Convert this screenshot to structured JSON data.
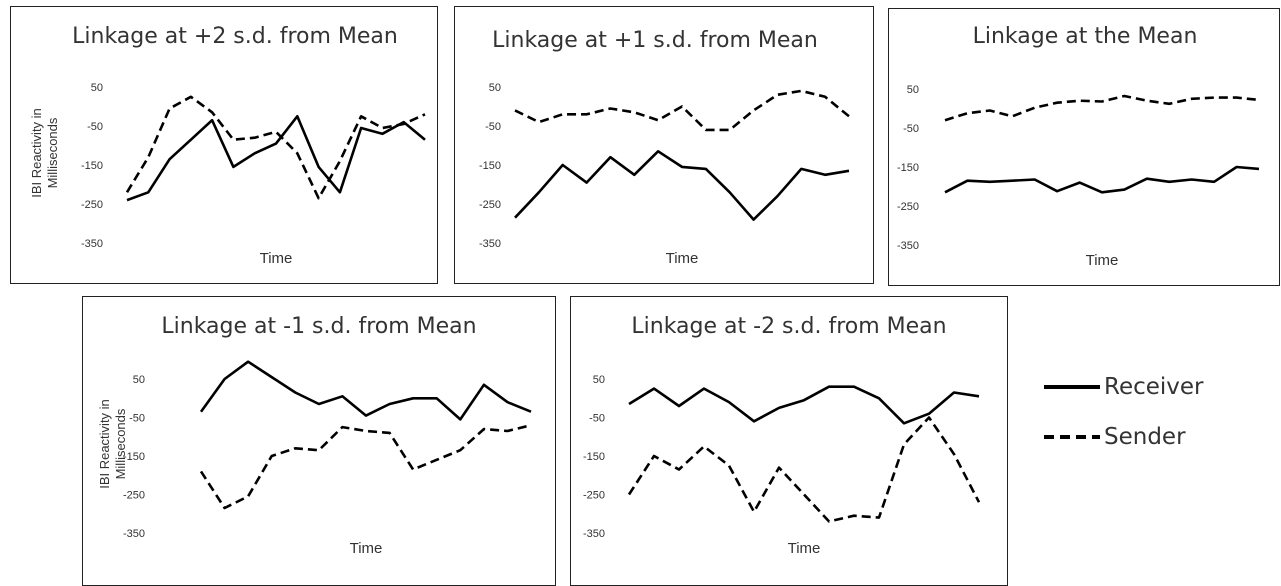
{
  "chart_data": [
    {
      "type": "line",
      "title": "Linkage at +2 s.d. from Mean",
      "xlabel": "Time",
      "ylabel": "IBI Reactivity in Milliseconds",
      "ylim": [
        -350,
        100
      ],
      "yticks": [
        50,
        -50,
        -150,
        -250,
        -350
      ],
      "series": [
        {
          "name": "Receiver",
          "style": "solid",
          "values": [
            -240,
            -220,
            -135,
            -85,
            -35,
            -155,
            -120,
            -95,
            -25,
            -155,
            -220,
            -55,
            -70,
            -40,
            -85
          ]
        },
        {
          "name": "Sender",
          "style": "dashed",
          "values": [
            -220,
            -130,
            -5,
            25,
            -15,
            -85,
            -80,
            -65,
            -120,
            -235,
            -140,
            -25,
            -55,
            -45,
            -20
          ]
        }
      ]
    },
    {
      "type": "line",
      "title": "Linkage at +1 s.d. from Mean",
      "xlabel": "Time",
      "ylabel": "",
      "ylim": [
        -350,
        100
      ],
      "yticks": [
        50,
        -50,
        -150,
        -250,
        -350
      ],
      "series": [
        {
          "name": "Receiver",
          "style": "solid",
          "values": [
            -285,
            -220,
            -150,
            -195,
            -130,
            -175,
            -115,
            -155,
            -160,
            -220,
            -290,
            -230,
            -160,
            -175,
            -165
          ]
        },
        {
          "name": "Sender",
          "style": "dashed",
          "values": [
            -10,
            -40,
            -20,
            -20,
            -5,
            -15,
            -35,
            0,
            -60,
            -60,
            -10,
            30,
            40,
            25,
            -25
          ]
        }
      ]
    },
    {
      "type": "line",
      "title": "Linkage at the Mean",
      "xlabel": "Time",
      "ylabel": "",
      "ylim": [
        -350,
        100
      ],
      "yticks": [
        50,
        -50,
        -150,
        -250,
        -350
      ],
      "series": [
        {
          "name": "Receiver",
          "style": "solid",
          "values": [
            -215,
            -185,
            -188,
            -185,
            -182,
            -212,
            -190,
            -215,
            -208,
            -180,
            -188,
            -182,
            -188,
            -150,
            -155
          ]
        },
        {
          "name": "Sender",
          "style": "dashed",
          "values": [
            -30,
            -12,
            -5,
            -20,
            2,
            15,
            20,
            18,
            32,
            20,
            12,
            25,
            28,
            28,
            22
          ]
        }
      ]
    },
    {
      "type": "line",
      "title": "Linkage at -1 s.d. from Mean",
      "xlabel": "Time",
      "ylabel": "IBI Reactivity in Milliseconds",
      "ylim": [
        -350,
        100
      ],
      "yticks": [
        50,
        -50,
        -150,
        -250,
        -350
      ],
      "series": [
        {
          "name": "Receiver",
          "style": "solid",
          "values": [
            -35,
            50,
            95,
            55,
            15,
            -15,
            5,
            -45,
            -15,
            0,
            0,
            -55,
            35,
            -10,
            -35
          ]
        },
        {
          "name": "Sender",
          "style": "dashed",
          "values": [
            -190,
            -285,
            -255,
            -150,
            -130,
            -135,
            -75,
            -85,
            -90,
            -185,
            -160,
            -135,
            -80,
            -85,
            -70
          ]
        }
      ]
    },
    {
      "type": "line",
      "title": "Linkage at -2 s.d. from Mean",
      "xlabel": "Time",
      "ylabel": "",
      "ylim": [
        -350,
        100
      ],
      "yticks": [
        50,
        -50,
        -150,
        -250,
        -350
      ],
      "series": [
        {
          "name": "Receiver",
          "style": "solid",
          "values": [
            -15,
            25,
            -20,
            25,
            -10,
            -60,
            -25,
            -5,
            30,
            30,
            0,
            -65,
            -40,
            15,
            5
          ]
        },
        {
          "name": "Sender",
          "style": "dashed",
          "values": [
            -250,
            -150,
            -185,
            -125,
            -175,
            -295,
            -180,
            -250,
            -320,
            -305,
            -310,
            -120,
            -50,
            -145,
            -270
          ]
        }
      ]
    }
  ],
  "legend": {
    "receiver_label": "Receiver",
    "sender_label": "Sender"
  }
}
